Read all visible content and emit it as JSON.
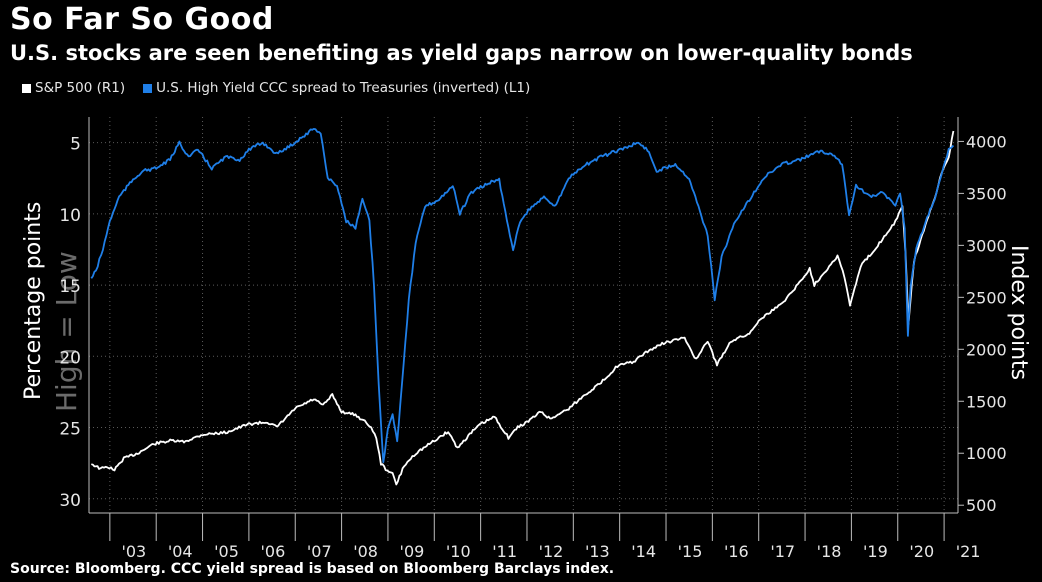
{
  "header": {
    "title": "So Far So Good",
    "subtitle": "U.S. stocks are seen benefiting as yield gaps narrow on lower-quality bonds"
  },
  "legend": {
    "items": [
      {
        "label": "S&P 500 (R1)",
        "color": "#ffffff"
      },
      {
        "label": "U.S. High Yield CCC spread to Treasuries (inverted) (L1)",
        "color": "#1f7fe8"
      }
    ]
  },
  "footer": {
    "source": "Source: Bloomberg. CCC yield spread is based on Bloomberg Barclays index."
  },
  "chart_data": {
    "type": "line",
    "x_ticks": [
      "'03",
      "'04",
      "'05",
      "'06",
      "'07",
      "'08",
      "'09",
      "'10",
      "'11",
      "'12",
      "'13",
      "'14",
      "'15",
      "'16",
      "'17",
      "'18",
      "'19",
      "'20",
      "'21"
    ],
    "left_axis": {
      "label": "Percentage points",
      "inverted": true,
      "range": [
        3.2,
        31
      ],
      "ticks": [
        5,
        10,
        15,
        20,
        25,
        30
      ],
      "annotation": "High = Low"
    },
    "right_axis": {
      "label": "Index points",
      "range": [
        425,
        4235
      ],
      "ticks": [
        500,
        1000,
        1500,
        2000,
        2500,
        3000,
        3500,
        4000
      ]
    },
    "x_range": [
      2002.55,
      2021.3
    ],
    "grid": "dotted",
    "series": [
      {
        "name": "S&P 500 (R1)",
        "axis": "right",
        "color": "#ffffff",
        "points": [
          [
            2002.6,
            900
          ],
          [
            2002.8,
            850
          ],
          [
            2002.95,
            870
          ],
          [
            2003.1,
            840
          ],
          [
            2003.3,
            950
          ],
          [
            2003.6,
            1000
          ],
          [
            2003.95,
            1090
          ],
          [
            2004.3,
            1120
          ],
          [
            2004.6,
            1110
          ],
          [
            2005.0,
            1180
          ],
          [
            2005.5,
            1200
          ],
          [
            2006.0,
            1280
          ],
          [
            2006.4,
            1300
          ],
          [
            2006.6,
            1250
          ],
          [
            2007.0,
            1430
          ],
          [
            2007.4,
            1520
          ],
          [
            2007.6,
            1460
          ],
          [
            2007.8,
            1560
          ],
          [
            2008.0,
            1400
          ],
          [
            2008.3,
            1370
          ],
          [
            2008.6,
            1270
          ],
          [
            2008.75,
            1150
          ],
          [
            2008.85,
            900
          ],
          [
            2008.95,
            850
          ],
          [
            2009.1,
            800
          ],
          [
            2009.18,
            700
          ],
          [
            2009.35,
            880
          ],
          [
            2009.6,
            1000
          ],
          [
            2010.0,
            1120
          ],
          [
            2010.3,
            1210
          ],
          [
            2010.5,
            1050
          ],
          [
            2010.8,
            1200
          ],
          [
            2011.0,
            1280
          ],
          [
            2011.3,
            1350
          ],
          [
            2011.6,
            1150
          ],
          [
            2011.8,
            1250
          ],
          [
            2012.0,
            1300
          ],
          [
            2012.3,
            1400
          ],
          [
            2012.5,
            1330
          ],
          [
            2012.9,
            1430
          ],
          [
            2013.3,
            1580
          ],
          [
            2013.6,
            1680
          ],
          [
            2013.95,
            1840
          ],
          [
            2014.3,
            1880
          ],
          [
            2014.6,
            1980
          ],
          [
            2014.95,
            2060
          ],
          [
            2015.4,
            2110
          ],
          [
            2015.65,
            1900
          ],
          [
            2015.9,
            2080
          ],
          [
            2016.1,
            1850
          ],
          [
            2016.4,
            2080
          ],
          [
            2016.8,
            2150
          ],
          [
            2017.0,
            2280
          ],
          [
            2017.5,
            2440
          ],
          [
            2017.95,
            2680
          ],
          [
            2018.1,
            2780
          ],
          [
            2018.2,
            2620
          ],
          [
            2018.7,
            2900
          ],
          [
            2018.85,
            2700
          ],
          [
            2018.97,
            2420
          ],
          [
            2019.2,
            2800
          ],
          [
            2019.5,
            2960
          ],
          [
            2019.95,
            3230
          ],
          [
            2020.1,
            3380
          ],
          [
            2020.17,
            2900
          ],
          [
            2020.23,
            2250
          ],
          [
            2020.35,
            2850
          ],
          [
            2020.6,
            3200
          ],
          [
            2020.8,
            3450
          ],
          [
            2020.95,
            3700
          ],
          [
            2021.1,
            3850
          ],
          [
            2021.2,
            4100
          ]
        ]
      },
      {
        "name": "U.S. High Yield CCC spread to Treasuries (inverted) (L1)",
        "axis": "left",
        "color": "#1f7fe8",
        "points": [
          [
            2002.6,
            14.5
          ],
          [
            2002.7,
            14.0
          ],
          [
            2002.85,
            12.5
          ],
          [
            2003.0,
            10.5
          ],
          [
            2003.2,
            8.8
          ],
          [
            2003.5,
            7.6
          ],
          [
            2003.7,
            7.0
          ],
          [
            2004.0,
            6.8
          ],
          [
            2004.3,
            6.2
          ],
          [
            2004.5,
            5.0
          ],
          [
            2004.7,
            6.0
          ],
          [
            2004.9,
            5.5
          ],
          [
            2005.2,
            6.8
          ],
          [
            2005.5,
            6.0
          ],
          [
            2005.8,
            6.2
          ],
          [
            2006.0,
            5.5
          ],
          [
            2006.3,
            5.0
          ],
          [
            2006.6,
            5.8
          ],
          [
            2006.9,
            5.2
          ],
          [
            2007.2,
            4.5
          ],
          [
            2007.4,
            4.0
          ],
          [
            2007.55,
            4.3
          ],
          [
            2007.7,
            7.5
          ],
          [
            2007.9,
            8.0
          ],
          [
            2008.1,
            10.5
          ],
          [
            2008.3,
            11.0
          ],
          [
            2008.45,
            9.0
          ],
          [
            2008.6,
            10.5
          ],
          [
            2008.7,
            15.0
          ],
          [
            2008.8,
            22.0
          ],
          [
            2008.9,
            27.5
          ],
          [
            2009.0,
            25.0
          ],
          [
            2009.1,
            24.0
          ],
          [
            2009.2,
            26.0
          ],
          [
            2009.3,
            22.0
          ],
          [
            2009.45,
            16.0
          ],
          [
            2009.6,
            12.0
          ],
          [
            2009.8,
            9.5
          ],
          [
            2010.1,
            9.0
          ],
          [
            2010.4,
            8.0
          ],
          [
            2010.55,
            10.0
          ],
          [
            2010.8,
            8.5
          ],
          [
            2011.2,
            7.8
          ],
          [
            2011.4,
            7.6
          ],
          [
            2011.6,
            11.0
          ],
          [
            2011.7,
            12.5
          ],
          [
            2011.85,
            10.5
          ],
          [
            2012.1,
            9.5
          ],
          [
            2012.4,
            8.8
          ],
          [
            2012.6,
            9.5
          ],
          [
            2012.9,
            7.5
          ],
          [
            2013.3,
            6.5
          ],
          [
            2013.6,
            6.0
          ],
          [
            2014.0,
            5.5
          ],
          [
            2014.4,
            5.0
          ],
          [
            2014.6,
            5.5
          ],
          [
            2014.8,
            7.0
          ],
          [
            2015.2,
            6.5
          ],
          [
            2015.5,
            7.5
          ],
          [
            2015.7,
            9.5
          ],
          [
            2015.9,
            11.5
          ],
          [
            2016.05,
            16.0
          ],
          [
            2016.2,
            13.0
          ],
          [
            2016.5,
            10.5
          ],
          [
            2016.8,
            9.0
          ],
          [
            2017.1,
            7.5
          ],
          [
            2017.5,
            6.5
          ],
          [
            2017.9,
            6.2
          ],
          [
            2018.3,
            5.6
          ],
          [
            2018.6,
            5.8
          ],
          [
            2018.8,
            6.5
          ],
          [
            2018.95,
            10.0
          ],
          [
            2019.1,
            8.0
          ],
          [
            2019.4,
            8.8
          ],
          [
            2019.7,
            8.5
          ],
          [
            2019.95,
            9.5
          ],
          [
            2020.05,
            8.5
          ],
          [
            2020.15,
            11.0
          ],
          [
            2020.22,
            18.5
          ],
          [
            2020.28,
            15.0
          ],
          [
            2020.4,
            12.5
          ],
          [
            2020.6,
            10.5
          ],
          [
            2020.8,
            9.0
          ],
          [
            2020.95,
            7.2
          ],
          [
            2021.1,
            5.5
          ],
          [
            2021.2,
            5.2
          ]
        ]
      }
    ]
  }
}
